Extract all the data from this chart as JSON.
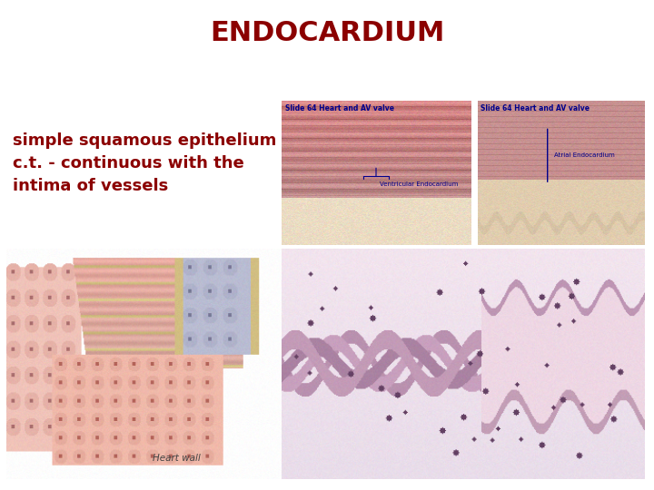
{
  "title": "ENDOCARDIUM",
  "title_color": "#8B0000",
  "title_fontsize": 22,
  "title_fontweight": "bold",
  "background_color": "#FFFFFF",
  "text_line1": "simple squamous epithelium +",
  "text_line2": "c.t. - continuous with the",
  "text_line3": "intima of vessels",
  "text_color": "#8B0000",
  "text_fontsize": 13,
  "img1_label": "Slide 64 Heart and AV valve",
  "img1_sublabel": "Ventricular Endocardium",
  "img2_label": "Slide 64 Heart and AV valve",
  "img2_sublabel": "Atrial Endocardium",
  "label_color": "#00008B",
  "label_fontsize": 5.5
}
